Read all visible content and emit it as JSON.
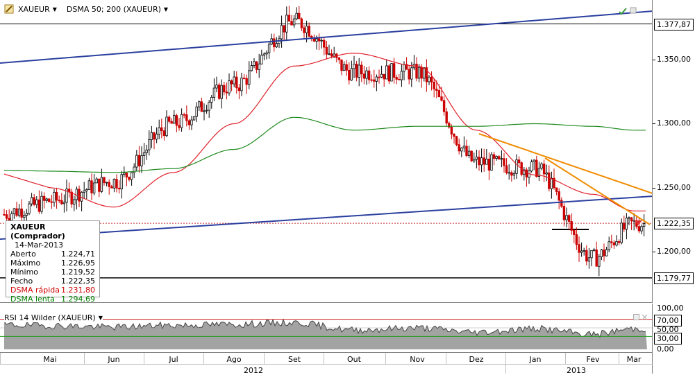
{
  "toolbar": {
    "symbol": "XAUEUR",
    "indicator": "DSMA 50; 200 (XAUEUR)"
  },
  "price_axis": {
    "labels": [
      "1.350,00",
      "1.300,00",
      "1.250,00",
      "1.200,00"
    ],
    "levels": {
      "upper": "1.377,87",
      "current": "1.222,35",
      "lower": "1.179,77"
    }
  },
  "infobox": {
    "title": "XAUEUR (Comprador)",
    "date": "14-Mar-2013",
    "rows": [
      {
        "label": "Aberto",
        "value": "1.224,71"
      },
      {
        "label": "Máximo",
        "value": "1.226,95"
      },
      {
        "label": "Mínimo",
        "value": "1.219,52"
      },
      {
        "label": "Fecho",
        "value": "1.222,35"
      },
      {
        "label": "DSMA rápida",
        "value": "1.231,80"
      },
      {
        "label": "DSMA lenta",
        "value": "1.294,69"
      }
    ]
  },
  "rsi": {
    "title": "RSI 14 Wilder (XAUEUR)",
    "labels": [
      "100,00",
      "70,00",
      "50,00",
      "30,00",
      "0,00"
    ]
  },
  "time_axis": {
    "months": [
      "Mai",
      "Jun",
      "Jul",
      "Ago",
      "Set",
      "Out",
      "Nov",
      "Dez",
      "Jan",
      "Fev",
      "Mar"
    ],
    "years": [
      "2012",
      "2013"
    ]
  },
  "colors": {
    "up_candle": "#000000",
    "down_candle": "#cc0000",
    "dsma_fast": "#e0202a",
    "dsma_slow": "#1c8a1c",
    "trend_channel": "#2a3f9f",
    "trend_orange": "#f08c00"
  },
  "chart_data": {
    "type": "line",
    "title": "XAUEUR",
    "x": [
      "2012-05",
      "2012-06",
      "2012-07",
      "2012-08",
      "2012-09",
      "2012-10",
      "2012-11",
      "2012-12",
      "2013-01",
      "2013-02",
      "2013-03"
    ],
    "series": [
      {
        "name": "XAUEUR",
        "values": [
          1240,
          1255,
          1300,
          1330,
          1380,
          1340,
          1340,
          1270,
          1265,
          1195,
          1222
        ]
      },
      {
        "name": "DSMA rápida",
        "values": [
          1250,
          1235,
          1262,
          1300,
          1345,
          1355,
          1345,
          1295,
          1260,
          1245,
          1232
        ]
      },
      {
        "name": "DSMA lenta",
        "values": [
          1263,
          1262,
          1265,
          1280,
          1305,
          1295,
          1298,
          1298,
          1300,
          1298,
          1295
        ]
      }
    ],
    "ylim": [
      1160,
      1405
    ],
    "rsi_levels": [
      30,
      50,
      70
    ]
  }
}
